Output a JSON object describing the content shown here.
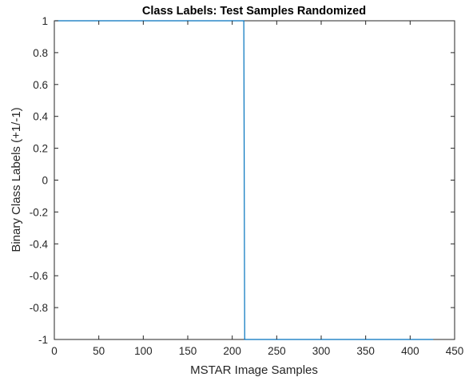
{
  "colors": {
    "axis": "#262626",
    "line": "#0072bd",
    "background": "#ffffff"
  },
  "chart_data": {
    "type": "line",
    "title": "Class Labels: Test Samples Randomized",
    "xlabel": "MSTAR Image Samples",
    "ylabel": "Binary Class Labels (+1/-1)",
    "xlim": [
      0,
      450
    ],
    "ylim": [
      -1,
      1
    ],
    "xticks": [
      0,
      50,
      100,
      150,
      200,
      250,
      300,
      350,
      400,
      450
    ],
    "yticks": [
      -1,
      -0.8,
      -0.6,
      -0.4,
      -0.2,
      0,
      0.2,
      0.4,
      0.6,
      0.8,
      1
    ],
    "xtick_labels": [
      "0",
      "50",
      "100",
      "150",
      "200",
      "250",
      "300",
      "350",
      "400",
      "450"
    ],
    "ytick_labels": [
      "-1",
      "-0.8",
      "-0.6",
      "-0.4",
      "-0.2",
      "0",
      "0.2",
      "0.4",
      "0.6",
      "0.8",
      "1"
    ],
    "grid": false,
    "series": [
      {
        "x": [
          1,
          213,
          214,
          426
        ],
        "y": [
          1,
          1,
          -1,
          -1
        ]
      }
    ]
  }
}
